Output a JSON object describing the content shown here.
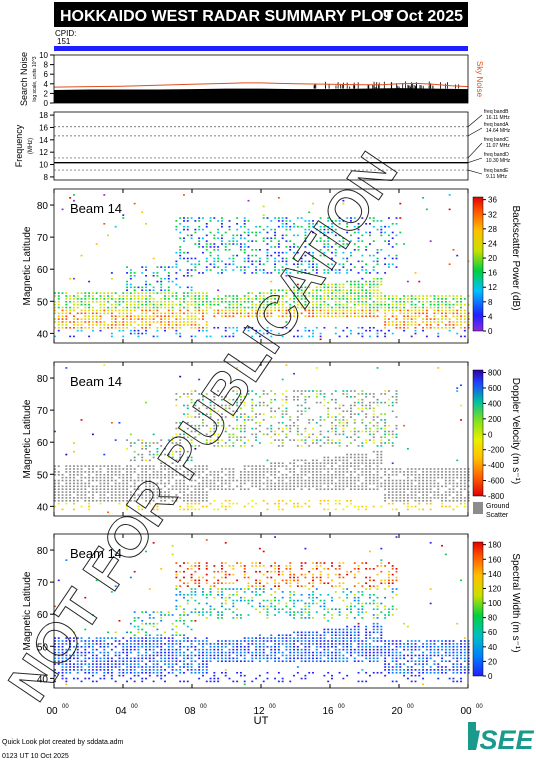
{
  "header": {
    "title": "HOKKAIDO WEST RADAR SUMMARY PLOT",
    "date": "9 Oct 2025",
    "cpid_label": "CPID:",
    "cpid_value": "151",
    "watermark": "NOT FOR PUBLICATION"
  },
  "footer": {
    "credit": "Quick Look plot created by sddata.adm",
    "created": "0123 UT 10 Oct 2025",
    "logo": "ISEE",
    "logo_color": "#1a9a8c"
  },
  "chart_data": [
    {
      "id": "search-noise",
      "type": "area",
      "ylabel": "Search Noise",
      "ylabel_sub": "log scale, units 10^3",
      "side_label": "Sky Noise",
      "side_label_color": "#e05020",
      "yticks": [
        0,
        2,
        4,
        6,
        8,
        10
      ],
      "ylim": [
        0,
        10
      ],
      "xlim": [
        0,
        24
      ],
      "series": [
        {
          "name": "Sky Noise",
          "color": "#e05020",
          "x": [
            0,
            2,
            4,
            6,
            8,
            10,
            11,
            12,
            13,
            14,
            16,
            18,
            19,
            20,
            21,
            22,
            23,
            24
          ],
          "values": [
            3.3,
            3.4,
            3.5,
            3.7,
            3.9,
            4.1,
            4.2,
            4.2,
            4.1,
            4.0,
            3.9,
            3.8,
            3.8,
            4.0,
            4.1,
            3.9,
            3.6,
            3.4
          ]
        },
        {
          "name": "",
          "color": "#000000",
          "x": [
            0,
            2,
            4,
            6,
            8,
            10,
            12,
            14,
            16,
            18,
            20,
            22,
            24
          ],
          "values": [
            2.7,
            2.8,
            2.8,
            2.8,
            2.9,
            3.0,
            3.0,
            2.9,
            2.9,
            3.0,
            3.1,
            3.0,
            2.9
          ]
        }
      ]
    },
    {
      "id": "frequency",
      "type": "line",
      "ylabel": "Frequency",
      "ylabel_sub": "(MHz)",
      "yticks": [
        8,
        10,
        12,
        14,
        16,
        18
      ],
      "ylim": [
        7.5,
        18.5
      ],
      "xlim": [
        0,
        24
      ],
      "bands": [
        {
          "label": "freq bandB",
          "value": "16.11 MHz",
          "freq": 16.11
        },
        {
          "label": "freq bandA",
          "value": "14.64 MHz",
          "freq": 14.64
        },
        {
          "label": "freq bandC",
          "value": "11.07 MHz",
          "freq": 11.07
        },
        {
          "label": "freq bandD",
          "value": "10.30 MHz",
          "freq": 10.3
        },
        {
          "label": "freq bandE",
          "value": "9.11 MHz",
          "freq": 9.11
        }
      ],
      "operating_freq": 10.3
    },
    {
      "id": "backscatter-power",
      "type": "heatmap",
      "beam": "Beam 14",
      "ylabel": "Magnetic Latitude",
      "yticks": [
        40,
        50,
        60,
        70,
        80
      ],
      "ylim": [
        37,
        85
      ],
      "xlim": [
        0,
        24
      ],
      "colorbar_label": "Backscatter Power (dB)",
      "colorbar_ticks": [
        "0",
        "4",
        "8",
        "12",
        "16",
        "20",
        "24",
        "28",
        "32",
        "36"
      ],
      "colorbar_range": [
        0,
        36
      ]
    },
    {
      "id": "doppler-velocity",
      "type": "heatmap",
      "beam": "Beam 14",
      "ylabel": "Magnetic Latitude",
      "yticks": [
        40,
        50,
        60,
        70,
        80
      ],
      "ylim": [
        37,
        85
      ],
      "xlim": [
        0,
        24
      ],
      "colorbar_label": "Doppler Velocity (m s⁻¹)",
      "colorbar_ticks": [
        "-800",
        "-600",
        "-400",
        "-200",
        "0",
        "200",
        "400",
        "600",
        "800"
      ],
      "colorbar_range": [
        -800,
        800
      ],
      "ground_scatter_label": [
        "Ground",
        "Scatter"
      ],
      "ground_scatter_color": "#8c8c8c"
    },
    {
      "id": "spectral-width",
      "type": "heatmap",
      "beam": "Beam 14",
      "ylabel": "Magnetic Latitude",
      "yticks": [
        40,
        50,
        60,
        70,
        80
      ],
      "ylim": [
        37,
        85
      ],
      "xlim": [
        0,
        24
      ],
      "colorbar_label": "Spectral Width (m s⁻¹)",
      "colorbar_ticks": [
        "0",
        "20",
        "40",
        "60",
        "80",
        "100",
        "120",
        "140",
        "160",
        "180"
      ],
      "colorbar_range": [
        0,
        180
      ]
    }
  ],
  "xaxis": {
    "label": "UT",
    "ticks": [
      0,
      4,
      8,
      12,
      16,
      20,
      24
    ],
    "tick_hours": [
      "00",
      "04",
      "08",
      "12",
      "16",
      "20",
      "00"
    ],
    "tick_minutes": "00"
  }
}
